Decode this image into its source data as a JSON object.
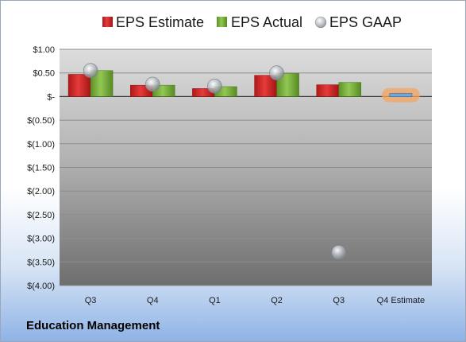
{
  "company": "Education Management",
  "colors": {
    "estimate": "#d42020",
    "actual": "#79b33a",
    "gaap": "#a9aeb5",
    "q4_estimate_marker": "#6fa8dc",
    "q4_estimate_glow": "#f4a460"
  },
  "chart_data": {
    "type": "bar",
    "title": "",
    "xlabel": "",
    "ylabel": "",
    "categories": [
      "Q3",
      "Q4",
      "Q1",
      "Q2",
      "Q3",
      "Q4 Estimate"
    ],
    "series": [
      {
        "name": "EPS Estimate",
        "type": "bar",
        "values": [
          0.47,
          0.24,
          0.17,
          0.45,
          0.25,
          null
        ]
      },
      {
        "name": "EPS Actual",
        "type": "bar",
        "values": [
          0.55,
          0.24,
          0.21,
          0.49,
          0.3,
          null
        ]
      },
      {
        "name": "EPS GAAP",
        "type": "scatter",
        "values": [
          0.55,
          0.26,
          0.22,
          0.5,
          -3.3,
          null
        ]
      }
    ],
    "q4_estimate_value": 0.03,
    "ylim": [
      -4.0,
      1.0
    ],
    "yticks": [
      1.0,
      0.5,
      0,
      -0.5,
      -1.0,
      -1.5,
      -2.0,
      -2.5,
      -3.0,
      -3.5,
      -4.0
    ],
    "ytick_labels": [
      "$1.00",
      "$0.50",
      "$-",
      "$(0.50)",
      "$(1.00)",
      "$(1.50)",
      "$(2.00)",
      "$(2.50)",
      "$(3.00)",
      "$(3.50)",
      "$(4.00)"
    ],
    "grid": true,
    "legend_position": "top"
  }
}
